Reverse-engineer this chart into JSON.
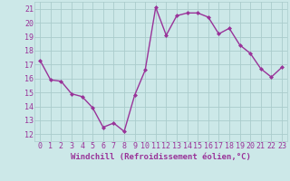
{
  "x": [
    0,
    1,
    2,
    3,
    4,
    5,
    6,
    7,
    8,
    9,
    10,
    11,
    12,
    13,
    14,
    15,
    16,
    17,
    18,
    19,
    20,
    21,
    22,
    23
  ],
  "y": [
    17.3,
    15.9,
    15.8,
    14.9,
    14.7,
    13.9,
    12.5,
    12.8,
    12.2,
    14.8,
    16.6,
    21.1,
    19.1,
    20.5,
    20.7,
    20.7,
    20.4,
    19.2,
    19.6,
    18.4,
    17.8,
    16.7,
    16.1,
    16.8
  ],
  "line_color": "#993399",
  "marker": "D",
  "marker_size": 2.0,
  "line_width": 1.0,
  "bg_color": "#cce8e8",
  "grid_color": "#aacccc",
  "xlabel": "Windchill (Refroidissement éolien,°C)",
  "xlabel_fontsize": 6.5,
  "ylabel_ticks": [
    12,
    13,
    14,
    15,
    16,
    17,
    18,
    19,
    20,
    21
  ],
  "xlim": [
    -0.5,
    23.5
  ],
  "ylim": [
    11.5,
    21.5
  ],
  "tick_fontsize": 6.0,
  "label_color": "#993399"
}
